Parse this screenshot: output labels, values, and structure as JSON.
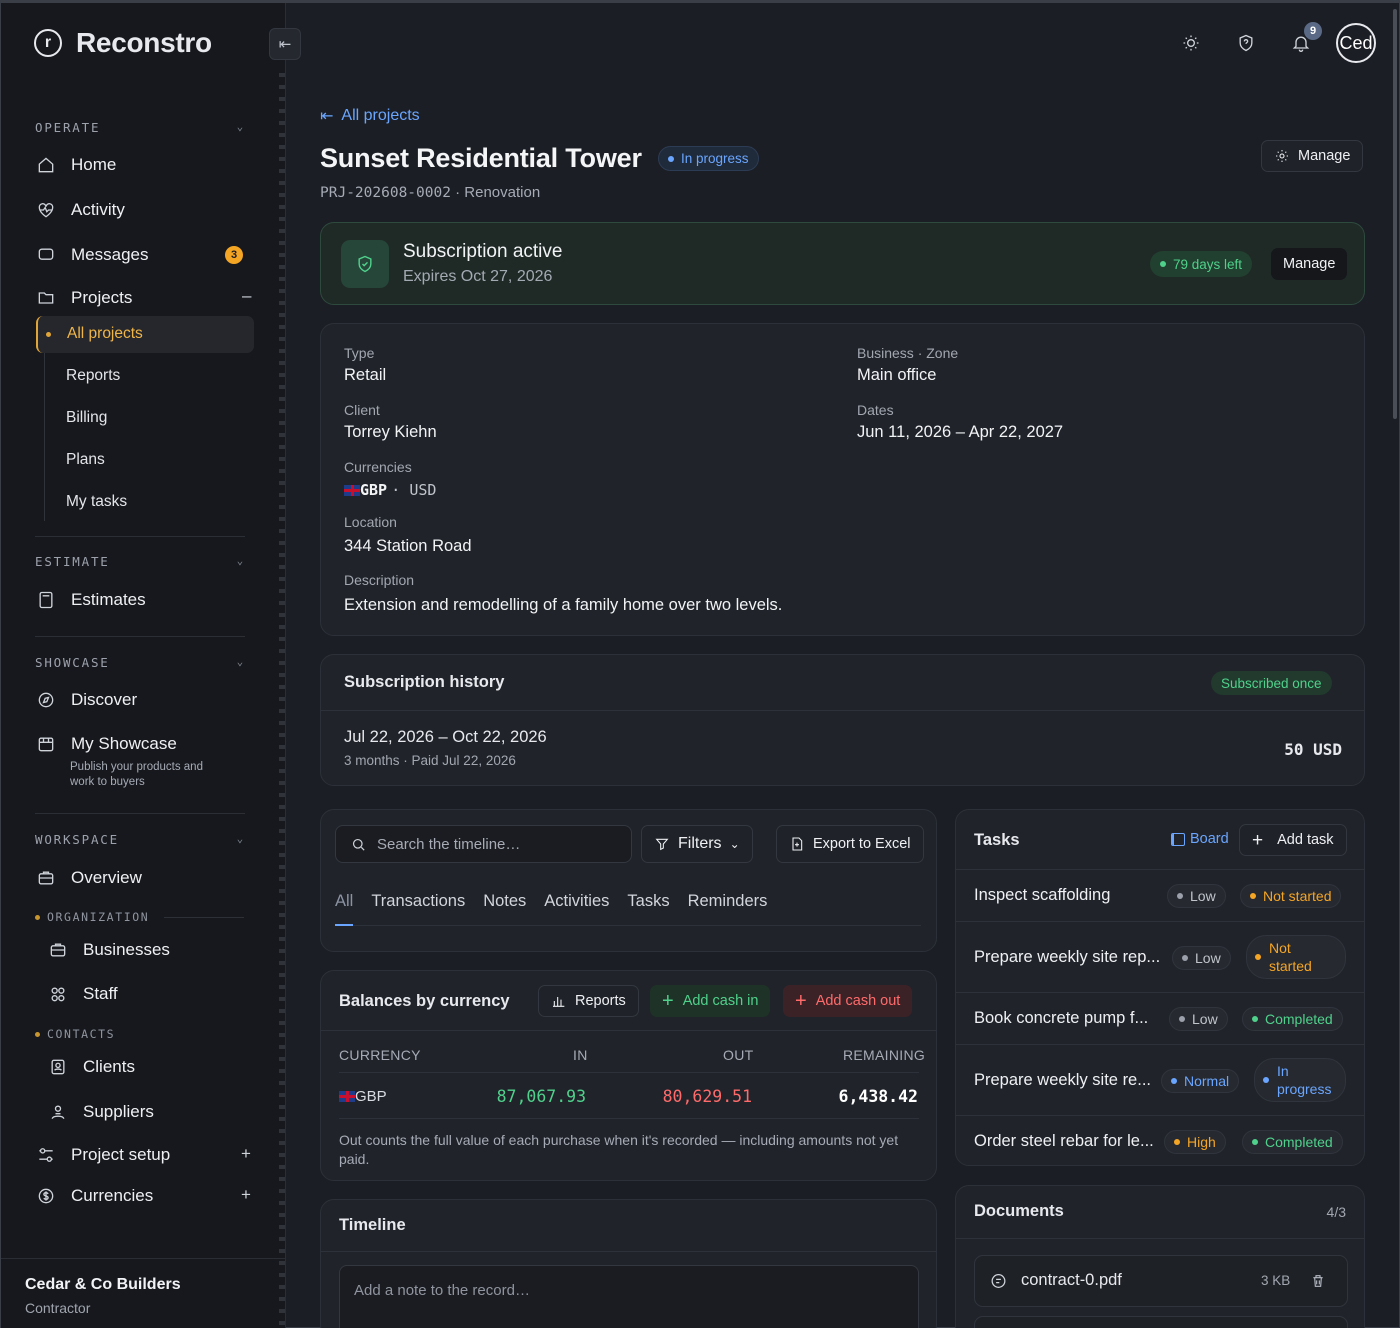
{
  "brand": {
    "name": "Reconstro",
    "logo_letter": "r"
  },
  "sidebar": {
    "operate": {
      "heading": "OPERATE",
      "home": "Home",
      "activity": "Activity",
      "messages": "Messages",
      "messages_badge": "3",
      "projects": "Projects"
    },
    "projects_sub": [
      "All projects",
      "Reports",
      "Billing",
      "Plans",
      "My tasks"
    ],
    "estimate": {
      "heading": "ESTIMATE",
      "estimates": "Estimates"
    },
    "showcase": {
      "heading": "SHOWCASE",
      "discover": "Discover",
      "my_showcase": "My Showcase",
      "my_showcase_sub": "Publish your products and work to buyers"
    },
    "workspace": {
      "heading": "WORKSPACE",
      "overview": "Overview",
      "organization": "ORGANIZATION",
      "businesses": "Businesses",
      "staff": "Staff",
      "contacts": "CONTACTS",
      "clients": "Clients",
      "suppliers": "Suppliers",
      "project_setup": "Project setup",
      "currencies": "Currencies"
    },
    "company": {
      "name": "Cedar & Co Builders",
      "role": "Contractor"
    }
  },
  "topbar": {
    "notifications_count": "9",
    "avatar_text": "Ced"
  },
  "project": {
    "back_link": "All projects",
    "title": "Sunset Residential Tower",
    "status": "In progress",
    "id": "PRJ-202608-0002",
    "kind": "· Renovation",
    "manage": "Manage"
  },
  "subscription": {
    "title": "Subscription active",
    "expires": "Expires Oct 27, 2026",
    "days_left": "79 days left",
    "manage": "Manage"
  },
  "details": {
    "type_label": "Type",
    "type": "Retail",
    "zone_label": "Business · Zone",
    "zone": "Main office",
    "client_label": "Client",
    "client": "Torrey Kiehn",
    "dates_label": "Dates",
    "dates": "Jun 11, 2026 – Apr 22, 2027",
    "currencies_label": "Currencies",
    "currency_main": "GBP",
    "currency_other": "· USD",
    "location_label": "Location",
    "location": "344 Station Road",
    "description_label": "Description",
    "description": "Extension and remodelling of a family home over two levels."
  },
  "history": {
    "title": "Subscription history",
    "badge": "Subscribed once",
    "period": "Jul 22, 2026 – Oct 22, 2026",
    "meta": "3 months · Paid Jul 22, 2026",
    "amount": "50 USD"
  },
  "timeline_filter": {
    "search_placeholder": "Search the timeline…",
    "filters": "Filters",
    "export": "Export to Excel",
    "tabs": [
      "All",
      "Transactions",
      "Notes",
      "Activities",
      "Tasks",
      "Reminders"
    ]
  },
  "balances": {
    "title": "Balances by currency",
    "reports": "Reports",
    "add_in": "Add cash in",
    "add_out": "Add cash out",
    "columns": [
      "CURRENCY",
      "IN",
      "OUT",
      "REMAINING"
    ],
    "rows": [
      {
        "currency": "GBP",
        "in": "87,067.93",
        "out": "80,629.51",
        "remaining": "6,438.42"
      }
    ],
    "note": "Out counts the full value of each purchase when it's recorded — including amounts not yet paid."
  },
  "timeline": {
    "title": "Timeline",
    "placeholder": "Add a note to the record…"
  },
  "tasks": {
    "title": "Tasks",
    "board": "Board",
    "add": "Add task",
    "items": [
      {
        "name": "Inspect scaffolding",
        "priority": "Low",
        "status": "Not started"
      },
      {
        "name": "Prepare weekly site rep...",
        "priority": "Low",
        "status": "Not started"
      },
      {
        "name": "Book concrete pump f...",
        "priority": "Low",
        "status": "Completed"
      },
      {
        "name": "Prepare weekly site re...",
        "priority": "Normal",
        "status": "In progress"
      },
      {
        "name": "Order steel rebar for le...",
        "priority": "High",
        "status": "Completed"
      }
    ]
  },
  "documents": {
    "title": "Documents",
    "count": "4/3",
    "items": [
      {
        "name": "contract-0.pdf",
        "size": "3 KB"
      }
    ]
  },
  "colors": {
    "accent_blue": "#6aa6ff",
    "green": "#4fd18b",
    "red": "#ff6b6b",
    "amber": "#f5a524"
  }
}
